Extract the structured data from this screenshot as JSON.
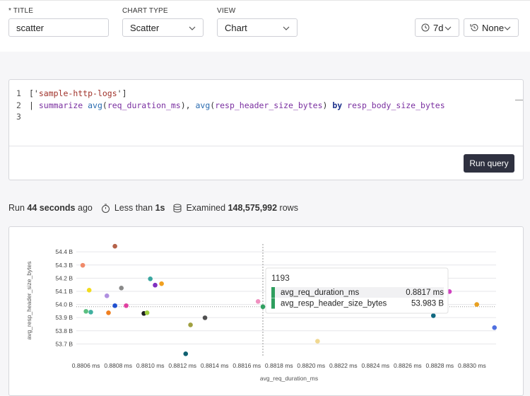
{
  "controls": {
    "title_label": "* TITLE",
    "title_value": "scatter",
    "chart_type_label": "CHART TYPE",
    "chart_type_value": "Scatter",
    "view_label": "VIEW",
    "view_value": "Chart",
    "time_range": "7d",
    "compare": "None"
  },
  "query": {
    "lines": [
      [
        {
          "text": "['",
          "color": "#333"
        },
        {
          "text": "sample-http-logs",
          "color": "#a0322a"
        },
        {
          "text": "']",
          "color": "#333"
        }
      ],
      [
        {
          "text": "| ",
          "color": "#333"
        },
        {
          "text": "summarize",
          "color": "#7a2fa0"
        },
        {
          "text": " ",
          "color": "#333"
        },
        {
          "text": "avg",
          "color": "#2b6cb0"
        },
        {
          "text": "(",
          "color": "#333"
        },
        {
          "text": "req_duration_ms",
          "color": "#7a2fa0"
        },
        {
          "text": "), ",
          "color": "#333"
        },
        {
          "text": "avg",
          "color": "#2b6cb0"
        },
        {
          "text": "(",
          "color": "#333"
        },
        {
          "text": "resp_header_size_bytes",
          "color": "#7a2fa0"
        },
        {
          "text": ") ",
          "color": "#333"
        },
        {
          "text": "by",
          "color": "#1a2f8a"
        },
        {
          "text": " ",
          "color": "#333"
        },
        {
          "text": "resp_body_size_bytes",
          "color": "#7a2fa0"
        }
      ],
      []
    ],
    "line_numbers": [
      "1",
      "2",
      "3"
    ],
    "run_button": "Run query"
  },
  "run_info": {
    "run_prefix": "Run",
    "run_time": "44 seconds",
    "run_suffix": "ago",
    "duration_prefix": "Less than",
    "duration": "1s",
    "examined_prefix": "Examined",
    "rows": "148,575,992",
    "examined_suffix": "rows"
  },
  "chart_data": {
    "type": "scatter",
    "x_label": "avg_req_duration_ms",
    "y_label": "avg_resp_header_size_bytes",
    "x": [
      0.88078,
      0.88058,
      0.88062,
      0.881,
      0.88107,
      0.88103,
      0.88082,
      0.88073,
      0.88078,
      0.88085,
      0.8806,
      0.88063,
      0.88074,
      0.88096,
      0.88098,
      0.88134,
      0.88125,
      0.88122,
      0.88167,
      0.8817,
      0.88204,
      0.88286,
      0.88276,
      0.88303,
      0.88314
    ],
    "values": [
      54.443,
      54.298,
      54.109,
      54.195,
      54.158,
      54.147,
      54.125,
      54.066,
      53.991,
      53.991,
      53.948,
      53.942,
      53.937,
      53.932,
      53.937,
      53.899,
      53.845,
      53.625,
      54.023,
      53.983,
      53.721,
      54.098,
      53.915,
      54.0,
      53.824
    ],
    "colors": [
      "#b5624a",
      "#f08a6a",
      "#f2dc1e",
      "#3aa7a0",
      "#f0a020",
      "#8030c0",
      "#8a8a8a",
      "#b090e0",
      "#2050d0",
      "#e040a0",
      "#5bc080",
      "#40b0a0",
      "#f08020",
      "#202020",
      "#a0d040",
      "#505050",
      "#a0a040",
      "#106070",
      "#f090c0",
      "#30a060",
      "#f0d890",
      "#d040c0",
      "#106880",
      "#e8a020",
      "#5070e0"
    ],
    "xlim": [
      0.88054,
      0.88315
    ],
    "ylim": [
      53.6,
      54.46
    ],
    "xticks": [
      {
        "value": 0.8806,
        "label": "0.8806 ms"
      },
      {
        "value": 0.8808,
        "label": "0.8808 ms"
      },
      {
        "value": 0.881,
        "label": "0.8810 ms"
      },
      {
        "value": 0.8812,
        "label": "0.8812 ms"
      },
      {
        "value": 0.8814,
        "label": "0.8814 ms"
      },
      {
        "value": 0.8816,
        "label": "0.8816 ms"
      },
      {
        "value": 0.8818,
        "label": "0.8818 ms"
      },
      {
        "value": 0.882,
        "label": "0.8820 ms"
      },
      {
        "value": 0.8822,
        "label": "0.8822 ms"
      },
      {
        "value": 0.8824,
        "label": "0.8824 ms"
      },
      {
        "value": 0.8826,
        "label": "0.8826 ms"
      },
      {
        "value": 0.8828,
        "label": "0.8828 ms"
      },
      {
        "value": 0.883,
        "label": "0.8830 ms"
      }
    ],
    "yticks": [
      {
        "value": 53.7,
        "label": "53.7 B"
      },
      {
        "value": 53.8,
        "label": "53.8 B"
      },
      {
        "value": 53.9,
        "label": "53.9 B"
      },
      {
        "value": 54.0,
        "label": "54.0 B"
      },
      {
        "value": 54.1,
        "label": "54.1 B"
      },
      {
        "value": 54.2,
        "label": "54.2 B"
      },
      {
        "value": 54.3,
        "label": "54.3 B"
      },
      {
        "value": 54.4,
        "label": "54.4 B"
      }
    ],
    "grid": true,
    "hover_index": 19,
    "tooltip": {
      "title": "1193",
      "rows": [
        {
          "name": "avg_req_duration_ms",
          "value": "0.8817 ms",
          "color": "#2e9e5e"
        },
        {
          "name": "avg_resp_header_size_bytes",
          "value": "53.983 B",
          "color": "#2e9e5e"
        }
      ]
    }
  }
}
